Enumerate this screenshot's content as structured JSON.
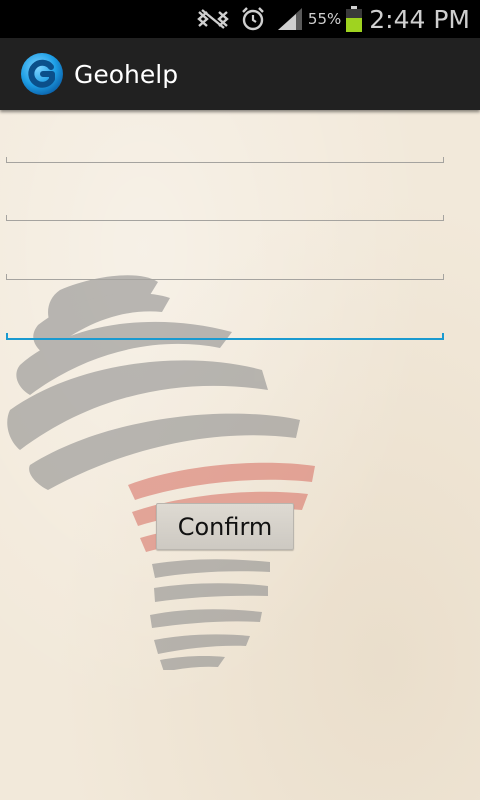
{
  "status_bar": {
    "icons": [
      "signal-blocked-icon",
      "alarm-icon",
      "cell-signal-icon",
      "battery-icon"
    ],
    "battery_percent": "55%",
    "time": "2:44 PM"
  },
  "action_bar": {
    "logo_icon": "geohelp-logo-icon",
    "title": "Geohelp"
  },
  "form": {
    "fields": [
      {
        "value": "",
        "placeholder": ""
      },
      {
        "value": "",
        "placeholder": ""
      },
      {
        "value": "",
        "placeholder": ""
      },
      {
        "value": "",
        "placeholder": ""
      }
    ],
    "confirm_label": "Confirm"
  },
  "colors": {
    "status_bar_bg": "#000000",
    "action_bar_bg": "#212121",
    "background": "#f2e9da",
    "focus_accent": "#1a9ad0",
    "watermark_gray": "#8f8f8f",
    "watermark_red": "#d9766a"
  }
}
